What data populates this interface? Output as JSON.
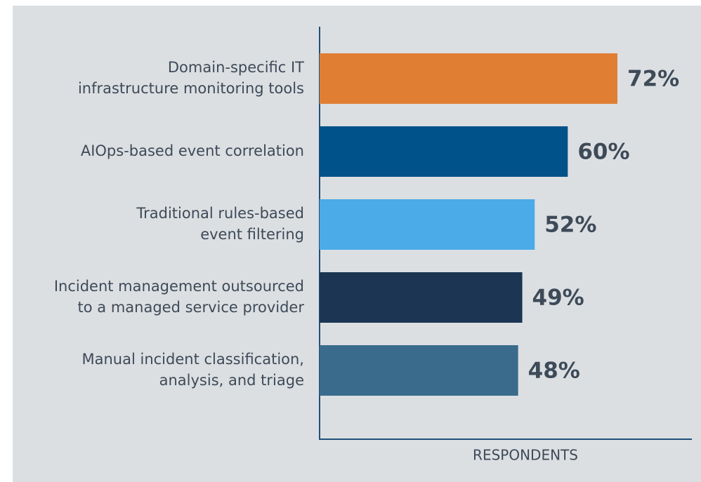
{
  "chart_data": {
    "type": "bar",
    "orientation": "horizontal",
    "categories": [
      [
        "Domain-specific IT",
        "infrastructure monitoring tools"
      ],
      [
        "AIOps-based event correlation"
      ],
      [
        "Traditional rules-based",
        "event filtering"
      ],
      [
        "Incident management outsourced",
        "to a managed service provider"
      ],
      [
        "Manual incident classification,",
        "analysis, and triage"
      ]
    ],
    "values": [
      72,
      60,
      52,
      49,
      48
    ],
    "value_labels": [
      "72%",
      "60%",
      "52%",
      "49%",
      "48%"
    ],
    "colors": [
      "#e07f34",
      "#00528a",
      "#4aabe8",
      "#1c3553",
      "#3a6b8c"
    ],
    "xlabel": "RESPONDENTS",
    "xlim": [
      0,
      90
    ]
  }
}
